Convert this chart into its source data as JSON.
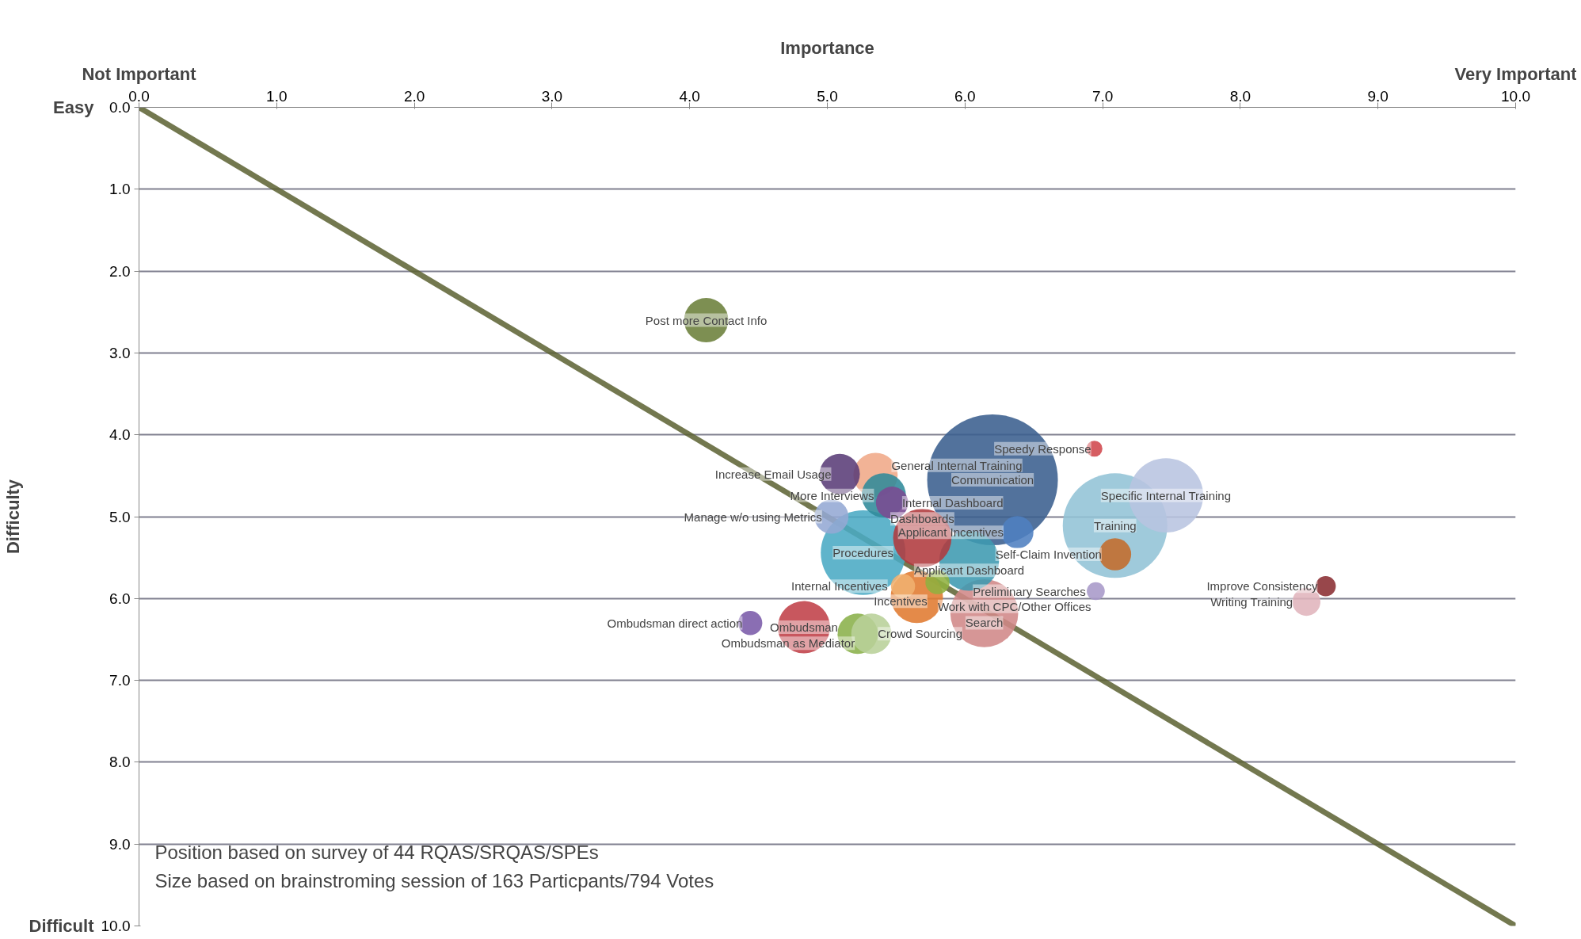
{
  "chart_data": {
    "type": "bubble",
    "xlabel": "Importance",
    "ylabel": "Difficulty",
    "xlim": [
      0,
      10
    ],
    "ylim": [
      10,
      0
    ],
    "xticks": [
      {
        "value": 0,
        "label": "0.0"
      },
      {
        "value": 1,
        "label": "1.0"
      },
      {
        "value": 2,
        "label": "2.0"
      },
      {
        "value": 3,
        "label": "3.0"
      },
      {
        "value": 4,
        "label": "4.0"
      },
      {
        "value": 5,
        "label": "5.0"
      },
      {
        "value": 6,
        "label": "6.0"
      },
      {
        "value": 7,
        "label": "7.0"
      },
      {
        "value": 8,
        "label": "8.0"
      },
      {
        "value": 9,
        "label": "9.0"
      },
      {
        "value": 10,
        "label": "10.0"
      }
    ],
    "yticks": [
      {
        "value": 0,
        "label": "0.0"
      },
      {
        "value": 1,
        "label": "1.0"
      },
      {
        "value": 2,
        "label": "2.0"
      },
      {
        "value": 3,
        "label": "3.0"
      },
      {
        "value": 4,
        "label": "4.0"
      },
      {
        "value": 5,
        "label": "5.0"
      },
      {
        "value": 6,
        "label": "6.0"
      },
      {
        "value": 7,
        "label": "7.0"
      },
      {
        "value": 8,
        "label": "8.0"
      },
      {
        "value": 9,
        "label": "9.0"
      },
      {
        "value": 10,
        "label": "10.0"
      }
    ],
    "grid": "y",
    "annotations": [
      "Not Important",
      "Very Important",
      "Easy",
      "Difficult",
      "Position based on survey of 44 RQAS/SRQAS/SPEs",
      "Size based on brainstroming session of 163 Particpants/794 Votes"
    ],
    "series": [
      {
        "name": "Post more Contact Info",
        "color": "#6b7f3a",
        "x": [
          4.12
        ],
        "values": [
          2.6
        ],
        "sizes": [
          0.115
        ]
      },
      {
        "name": "Communication",
        "color": "#3a5f8e",
        "x": [
          6.2
        ],
        "values": [
          4.55
        ],
        "sizes": [
          1
        ]
      },
      {
        "name": "Speedy Response",
        "color": "#d0474c",
        "x": [
          6.94
        ],
        "values": [
          4.17
        ],
        "sizes": [
          0.015
        ]
      },
      {
        "name": "Training",
        "color": "#92c3d6",
        "x": [
          7.09
        ],
        "values": [
          5.11
        ],
        "sizes": [
          0.64
        ]
      },
      {
        "name": "Specific Internal Training",
        "color": "#b8c4e0",
        "x": [
          7.46
        ],
        "values": [
          4.74
        ],
        "sizes": [
          0.324
        ]
      },
      {
        "name": "Self-Claim Invention",
        "color": "#c46b2a",
        "x": [
          7.09
        ],
        "values": [
          5.46
        ],
        "sizes": [
          0.061
        ]
      },
      {
        "name": "Applicant Incentives",
        "color": "#4e80c0",
        "x": [
          6.38
        ],
        "values": [
          5.19
        ],
        "sizes": [
          0.061
        ]
      },
      {
        "name": "Preliminary Searches",
        "color": "#a798c8",
        "x": [
          6.95
        ],
        "values": [
          5.91
        ],
        "sizes": [
          0.019
        ]
      },
      {
        "name": "Improve Consistency",
        "color": "#8a2e32",
        "x": [
          8.62
        ],
        "values": [
          5.85
        ],
        "sizes": [
          0.024
        ]
      },
      {
        "name": "Writing Training",
        "color": "#e0b4bc",
        "x": [
          8.48
        ],
        "values": [
          6.04
        ],
        "sizes": [
          0.046
        ]
      },
      {
        "name": "General Internal Training",
        "color": "#f0a888",
        "x": [
          5.35
        ],
        "values": [
          4.49
        ],
        "sizes": [
          0.115
        ]
      },
      {
        "name": "Increase Email Usage",
        "color": "#5a3c78",
        "x": [
          5.09
        ],
        "values": [
          4.48
        ],
        "sizes": [
          0.095
        ]
      },
      {
        "name": "Procedures",
        "color": "#4aaac4",
        "x": [
          5.26
        ],
        "values": [
          5.44
        ],
        "sizes": [
          0.42
        ]
      },
      {
        "name": "More Interviews",
        "color": "#2f8a9a",
        "x": [
          5.41
        ],
        "values": [
          4.74
        ],
        "sizes": [
          0.115
        ]
      },
      {
        "name": "Internal Dashboard",
        "color": "#7a4a92",
        "x": [
          5.47
        ],
        "values": [
          4.83
        ],
        "sizes": [
          0.061
        ]
      },
      {
        "name": "Manage w/o using Metrics",
        "color": "#94a8d4",
        "x": [
          5.03
        ],
        "values": [
          5.0
        ],
        "sizes": [
          0.068
        ]
      },
      {
        "name": "Applicant Dashboard",
        "color": "#3e9ab0",
        "x": [
          6.03
        ],
        "values": [
          5.54
        ],
        "sizes": [
          0.21
        ]
      },
      {
        "name": "Dashboards",
        "color": "#b03a3e",
        "x": [
          5.69
        ],
        "values": [
          5.26
        ],
        "sizes": [
          0.2
        ]
      },
      {
        "name": "Incentives",
        "color": "#8fb040",
        "x": [
          5.8
        ],
        "values": [
          5.8
        ],
        "sizes": [
          0.034
        ]
      },
      {
        "name": "Internal Incentives",
        "color": "#f0b070",
        "x": [
          5.55
        ],
        "values": [
          5.85
        ],
        "sizes": [
          0.034
        ]
      },
      {
        "name": "Work with CPC/Other Offices",
        "color": "#e07a30",
        "x": [
          5.65
        ],
        "values": [
          5.98
        ],
        "sizes": [
          0.16
        ]
      },
      {
        "name": "Search",
        "color": "#d08888",
        "x": [
          6.14
        ],
        "values": [
          6.18
        ],
        "sizes": [
          0.27
        ]
      },
      {
        "name": "Ombudsman direct action",
        "color": "#7a5aa8",
        "x": [
          4.44
        ],
        "values": [
          6.3
        ],
        "sizes": [
          0.034
        ]
      },
      {
        "name": "Ombudsman",
        "color": "#c04048",
        "x": [
          4.83
        ],
        "values": [
          6.35
        ],
        "sizes": [
          0.16
        ]
      },
      {
        "name": "Ombudsman as Mediator",
        "color": "#8ab04a",
        "x": [
          5.22
        ],
        "values": [
          6.43
        ],
        "sizes": [
          0.095
        ]
      },
      {
        "name": "Crowd Sourcing",
        "color": "#b8d098",
        "x": [
          5.32
        ],
        "values": [
          6.43
        ],
        "sizes": [
          0.095
        ]
      },
      {
        "type": "line",
        "color": "#5a6030",
        "x": [
          0,
          10
        ],
        "values": [
          0,
          10
        ]
      }
    ]
  }
}
